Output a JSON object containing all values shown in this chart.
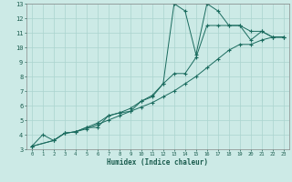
{
  "title": "",
  "xlabel": "Humidex (Indice chaleur)",
  "bg_color": "#cceae6",
  "grid_color": "#aad4cf",
  "line_color": "#1a6b5e",
  "xlim": [
    -0.5,
    23.5
  ],
  "ylim": [
    3,
    13
  ],
  "xticks": [
    0,
    1,
    2,
    3,
    4,
    5,
    6,
    7,
    8,
    9,
    10,
    11,
    12,
    13,
    14,
    15,
    16,
    17,
    18,
    19,
    20,
    21,
    22,
    23
  ],
  "yticks": [
    3,
    4,
    5,
    6,
    7,
    8,
    9,
    10,
    11,
    12,
    13
  ],
  "curve1_x": [
    0,
    1,
    2,
    3,
    4,
    5,
    6,
    7,
    8,
    9,
    10,
    11,
    12,
    13,
    14,
    15,
    16,
    17,
    18,
    19,
    20,
    21,
    22,
    23
  ],
  "curve1_y": [
    3.2,
    4.0,
    3.6,
    4.1,
    4.2,
    4.5,
    4.5,
    5.3,
    5.5,
    5.6,
    6.3,
    6.6,
    7.5,
    13.0,
    12.5,
    9.5,
    13.0,
    12.5,
    11.5,
    11.5,
    11.1,
    11.1,
    10.7,
    10.7
  ],
  "curve2_x": [
    0,
    2,
    3,
    4,
    5,
    6,
    7,
    8,
    9,
    10,
    11,
    12,
    13,
    14,
    15,
    16,
    17,
    18,
    19,
    20,
    21,
    22,
    23
  ],
  "curve2_y": [
    3.2,
    3.6,
    4.1,
    4.2,
    4.5,
    4.8,
    5.3,
    5.5,
    5.8,
    6.3,
    6.7,
    7.5,
    8.2,
    8.2,
    9.3,
    11.5,
    11.5,
    11.5,
    11.5,
    10.5,
    11.1,
    10.7,
    10.7
  ],
  "curve3_x": [
    0,
    2,
    3,
    4,
    5,
    6,
    7,
    8,
    9,
    10,
    11,
    12,
    13,
    14,
    15,
    16,
    17,
    18,
    19,
    20,
    21,
    22,
    23
  ],
  "curve3_y": [
    3.2,
    3.6,
    4.1,
    4.2,
    4.4,
    4.7,
    5.0,
    5.3,
    5.6,
    5.9,
    6.2,
    6.6,
    7.0,
    7.5,
    8.0,
    8.6,
    9.2,
    9.8,
    10.2,
    10.2,
    10.5,
    10.7,
    10.7
  ]
}
